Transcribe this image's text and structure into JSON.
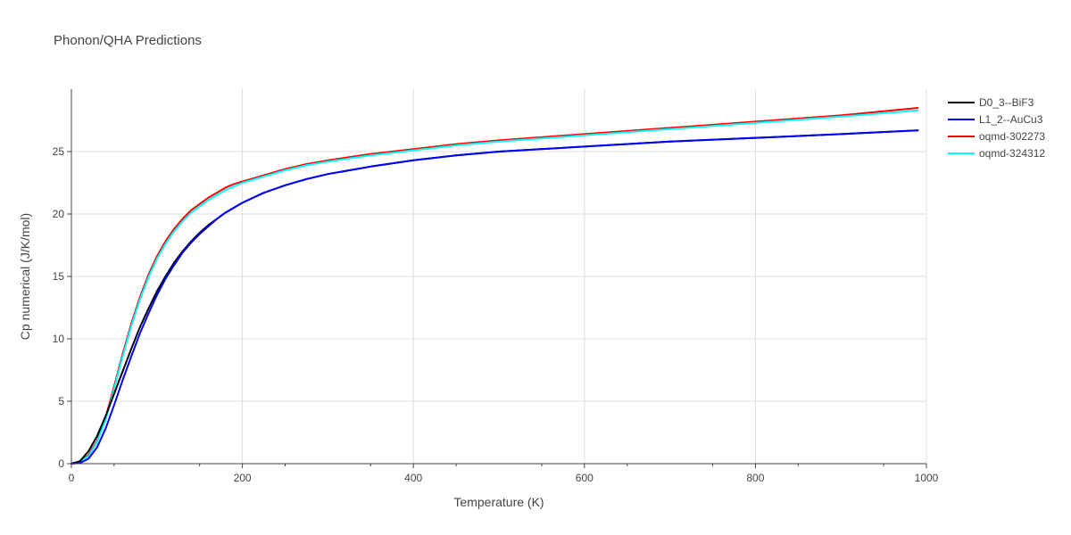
{
  "chart_data": {
    "type": "line",
    "title": "Phonon/QHA Predictions",
    "xlabel": "Temperature (K)",
    "ylabel": "Cp numerical (J/K/mol)",
    "xlim": [
      0,
      1000
    ],
    "ylim": [
      0,
      30
    ],
    "xticks": [
      0,
      200,
      400,
      600,
      800,
      1000
    ],
    "yticks": [
      0,
      5,
      10,
      15,
      20,
      25
    ],
    "grid": true,
    "legend_position": "top-right",
    "series": [
      {
        "name": "D0_3--BiF3",
        "color": "#000000",
        "x": [
          0,
          10,
          20,
          30,
          40,
          50,
          60,
          70,
          80,
          90,
          100,
          110,
          120,
          130,
          140,
          150,
          160,
          170,
          180,
          190,
          200,
          225,
          250,
          275,
          300,
          350,
          400,
          450,
          500,
          600,
          700,
          800,
          900,
          990
        ],
        "y": [
          0,
          0.2,
          1.0,
          2.2,
          3.8,
          5.6,
          7.4,
          9.2,
          10.9,
          12.4,
          13.8,
          15.0,
          16.1,
          17.0,
          17.8,
          18.5,
          19.1,
          19.6,
          20.1,
          20.5,
          20.9,
          21.7,
          22.3,
          22.8,
          23.2,
          23.8,
          24.3,
          24.7,
          25.0,
          25.4,
          25.8,
          26.1,
          26.4,
          26.7
        ]
      },
      {
        "name": "L1_2--AuCu3",
        "color": "#0000ff",
        "x": [
          0,
          10,
          20,
          30,
          40,
          50,
          60,
          70,
          80,
          90,
          100,
          110,
          120,
          130,
          140,
          150,
          160,
          170,
          180,
          190,
          200,
          225,
          250,
          275,
          300,
          350,
          400,
          450,
          500,
          600,
          700,
          800,
          900,
          990
        ],
        "y": [
          0,
          0.05,
          0.4,
          1.3,
          2.8,
          4.7,
          6.7,
          8.6,
          10.4,
          12.0,
          13.5,
          14.8,
          15.9,
          16.9,
          17.7,
          18.4,
          19.0,
          19.6,
          20.1,
          20.5,
          20.9,
          21.7,
          22.3,
          22.8,
          23.2,
          23.8,
          24.3,
          24.7,
          25.0,
          25.4,
          25.8,
          26.1,
          26.4,
          26.7
        ]
      },
      {
        "name": "oqmd-302273",
        "color": "#ff0000",
        "x": [
          0,
          10,
          20,
          30,
          40,
          50,
          60,
          70,
          80,
          90,
          100,
          110,
          120,
          130,
          140,
          150,
          160,
          170,
          180,
          190,
          200,
          225,
          250,
          275,
          300,
          350,
          400,
          450,
          500,
          600,
          700,
          800,
          900,
          990
        ],
        "y": [
          0,
          0.1,
          0.7,
          1.8,
          3.7,
          6.2,
          8.8,
          11.2,
          13.3,
          15.1,
          16.6,
          17.8,
          18.8,
          19.6,
          20.3,
          20.8,
          21.3,
          21.7,
          22.1,
          22.4,
          22.6,
          23.1,
          23.6,
          24.0,
          24.3,
          24.8,
          25.2,
          25.6,
          25.9,
          26.4,
          26.9,
          27.4,
          27.9,
          28.5
        ]
      },
      {
        "name": "oqmd-324312",
        "color": "#00ffff",
        "x": [
          0,
          10,
          20,
          30,
          40,
          50,
          60,
          70,
          80,
          90,
          100,
          110,
          120,
          130,
          140,
          150,
          160,
          170,
          180,
          190,
          200,
          225,
          250,
          275,
          300,
          350,
          400,
          450,
          500,
          600,
          700,
          800,
          900,
          990
        ],
        "y": [
          0,
          0.1,
          0.6,
          1.7,
          3.5,
          6.0,
          8.6,
          11.0,
          13.1,
          14.9,
          16.4,
          17.6,
          18.6,
          19.4,
          20.1,
          20.6,
          21.1,
          21.5,
          21.9,
          22.2,
          22.5,
          23.0,
          23.5,
          23.9,
          24.2,
          24.7,
          25.1,
          25.5,
          25.8,
          26.3,
          26.8,
          27.3,
          27.8,
          28.3
        ]
      }
    ]
  }
}
